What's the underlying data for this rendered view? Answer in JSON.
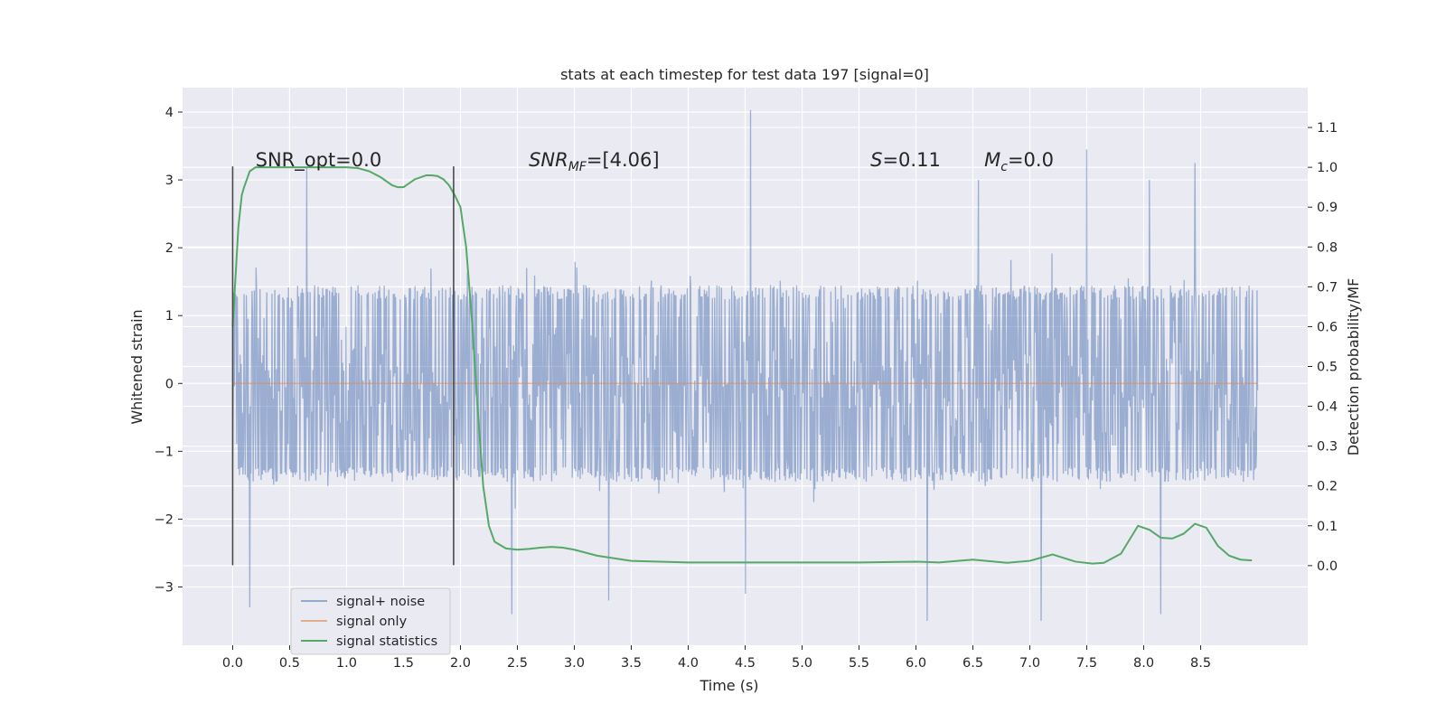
{
  "chart_data": {
    "type": "line",
    "title": "stats at each timestep for test data 197 [signal=0]",
    "xlabel": "Time (s)",
    "ylabel_left": "Whitened strain",
    "ylabel_right": "Detection probability/MF",
    "xlim": [
      -0.44,
      9.44
    ],
    "ylim_left": [
      -3.86,
      4.36
    ],
    "ylim_right": [
      -0.2,
      1.2
    ],
    "x_ticks": [
      0.0,
      0.5,
      1.0,
      1.5,
      2.0,
      2.5,
      3.0,
      3.5,
      4.0,
      4.5,
      5.0,
      5.5,
      6.0,
      6.5,
      7.0,
      7.5,
      8.0,
      8.5
    ],
    "x_tick_labels": [
      "0.0",
      "0.5",
      "1.0",
      "1.5",
      "2.0",
      "2.5",
      "3.0",
      "3.5",
      "4.0",
      "4.5",
      "5.0",
      "5.5",
      "6.0",
      "6.5",
      "7.0",
      "7.5",
      "8.0",
      "8.5"
    ],
    "y_left_ticks": [
      4,
      3,
      2,
      1,
      0,
      -1,
      -2,
      -3
    ],
    "y_left_tick_labels": [
      "4",
      "3",
      "2",
      "1",
      "0",
      "−1",
      "−2",
      "−3"
    ],
    "y_right_ticks": [
      1.1,
      1.0,
      0.9,
      0.8,
      0.7,
      0.6,
      0.5,
      0.4,
      0.3,
      0.2,
      0.1,
      0.0
    ],
    "y_right_tick_labels": [
      "1.1",
      "1.0",
      "0.9",
      "0.8",
      "0.7",
      "0.6",
      "0.5",
      "0.4",
      "0.3",
      "0.2",
      "0.1",
      "0.0"
    ],
    "grid": true,
    "background_color": "#eaeaf2",
    "legend_position": "lower-left",
    "annotations": [
      {
        "text": "SNR_opt=0.0",
        "x": 0.2,
        "y": 3.2
      },
      {
        "text": "SNR_MF=[4.06]",
        "x": 2.6,
        "y": 3.2
      },
      {
        "text": "S=0.11",
        "x": 5.6,
        "y": 3.2
      },
      {
        "text": "M_c=0.0",
        "x": 6.6,
        "y": 3.2
      }
    ],
    "window_markers": [
      {
        "x": 0.0,
        "y_range": [
          -2.68,
          3.2
        ]
      },
      {
        "x": 1.94,
        "y_range": [
          -2.68,
          3.2
        ]
      }
    ],
    "series": [
      {
        "name": "signal+ noise",
        "axis": "left",
        "color": "#4c72b0",
        "style": "noise",
        "x_range": [
          0.0,
          9.0
        ],
        "envelope": [
          -1.45,
          1.45
        ],
        "extreme_spikes": [
          {
            "x": 4.55,
            "y": 4.03
          },
          {
            "x": 7.5,
            "y": 3.45
          },
          {
            "x": 8.45,
            "y": 3.25
          },
          {
            "x": 0.65,
            "y": 3.2
          },
          {
            "x": 6.55,
            "y": 3.0
          },
          {
            "x": 8.05,
            "y": 3.0
          },
          {
            "x": 0.15,
            "y": -3.3
          },
          {
            "x": 2.45,
            "y": -3.4
          },
          {
            "x": 6.1,
            "y": -3.5
          },
          {
            "x": 7.1,
            "y": -3.5
          },
          {
            "x": 8.15,
            "y": -3.4
          },
          {
            "x": 4.5,
            "y": -3.1
          },
          {
            "x": 3.3,
            "y": -3.2
          }
        ]
      },
      {
        "name": "signal only",
        "axis": "left",
        "color": "#dd8452",
        "x": [
          0.0,
          9.0
        ],
        "y": [
          0.0,
          0.0
        ]
      },
      {
        "name": "signal statistics",
        "axis": "right",
        "color": "#55a868",
        "x": [
          0.0,
          0.02,
          0.05,
          0.08,
          0.1,
          0.15,
          0.2,
          0.3,
          0.5,
          0.8,
          1.0,
          1.1,
          1.2,
          1.3,
          1.4,
          1.45,
          1.5,
          1.6,
          1.7,
          1.75,
          1.8,
          1.85,
          1.9,
          1.95,
          2.0,
          2.05,
          2.1,
          2.15,
          2.2,
          2.25,
          2.3,
          2.4,
          2.5,
          2.6,
          2.7,
          2.8,
          2.9,
          3.0,
          3.2,
          3.5,
          4.0,
          4.5,
          5.0,
          5.5,
          6.0,
          6.2,
          6.5,
          6.8,
          7.0,
          7.2,
          7.4,
          7.55,
          7.65,
          7.8,
          7.95,
          8.05,
          8.15,
          8.25,
          8.35,
          8.45,
          8.55,
          8.65,
          8.75,
          8.85,
          8.95
        ],
        "y": [
          0.6,
          0.7,
          0.85,
          0.93,
          0.95,
          0.99,
          1.0,
          1.0,
          1.0,
          1.0,
          1.0,
          0.998,
          0.99,
          0.975,
          0.955,
          0.95,
          0.95,
          0.97,
          0.98,
          0.98,
          0.978,
          0.97,
          0.955,
          0.93,
          0.9,
          0.8,
          0.62,
          0.4,
          0.2,
          0.1,
          0.06,
          0.043,
          0.04,
          0.042,
          0.045,
          0.047,
          0.045,
          0.04,
          0.025,
          0.012,
          0.008,
          0.008,
          0.008,
          0.008,
          0.01,
          0.008,
          0.015,
          0.007,
          0.012,
          0.028,
          0.01,
          0.005,
          0.007,
          0.03,
          0.1,
          0.09,
          0.07,
          0.068,
          0.08,
          0.105,
          0.095,
          0.05,
          0.025,
          0.015,
          0.013
        ]
      }
    ]
  }
}
